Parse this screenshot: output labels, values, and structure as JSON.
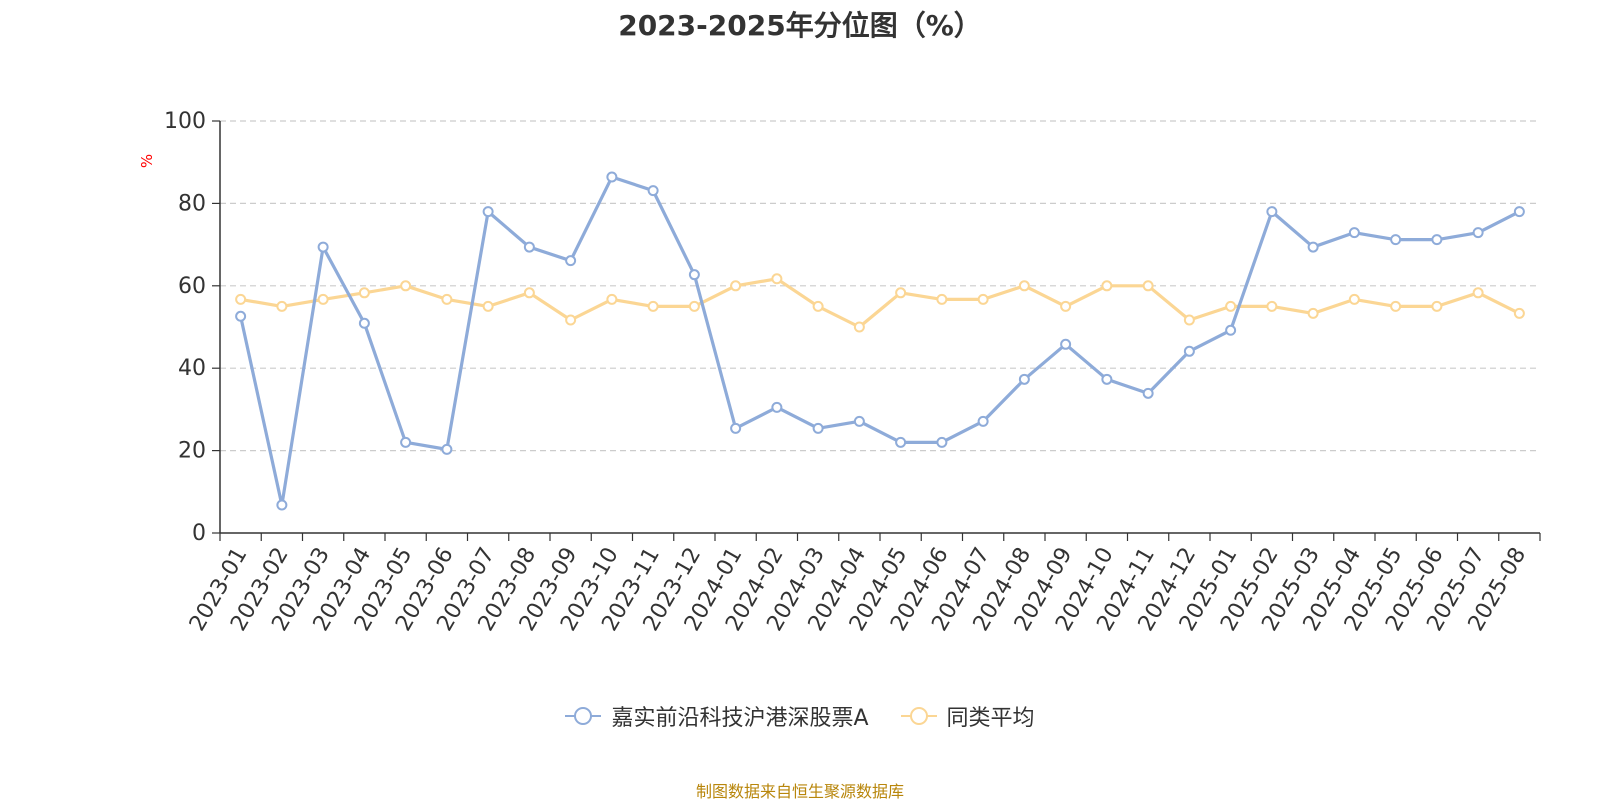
{
  "title": "2023-2025年分位图（%）",
  "unit_label": "%",
  "source_note": "制图数据来自恒生聚源数据库",
  "colors": {
    "series1": "#8eabd9",
    "series2": "#fbd694",
    "grid": "#cccccc",
    "axis": "#333333"
  },
  "chart_data": {
    "type": "line",
    "ylim": [
      0,
      100
    ],
    "yticks": [
      0,
      20,
      40,
      60,
      80,
      100
    ],
    "grid": true,
    "legend_position": "bottom",
    "categories": [
      "2023-01",
      "2023-02",
      "2023-03",
      "2023-04",
      "2023-05",
      "2023-06",
      "2023-07",
      "2023-08",
      "2023-09",
      "2023-10",
      "2023-11",
      "2023-12",
      "2024-01",
      "2024-02",
      "2024-03",
      "2024-04",
      "2024-05",
      "2024-06",
      "2024-07",
      "2024-08",
      "2024-09",
      "2024-10",
      "2024-11",
      "2024-12",
      "2025-01",
      "2025-02",
      "2025-03",
      "2025-04",
      "2025-05",
      "2025-06",
      "2025-07",
      "2025-08"
    ],
    "series": [
      {
        "name": "嘉实前沿科技沪港深股票A",
        "values": [
          52.6,
          6.8,
          69.4,
          50.9,
          22.0,
          20.3,
          78.0,
          69.4,
          66.1,
          86.4,
          83.1,
          62.7,
          25.4,
          30.5,
          25.4,
          27.1,
          22.0,
          22.0,
          27.1,
          37.3,
          45.8,
          37.3,
          33.9,
          44.1,
          49.2,
          78.0,
          69.4,
          72.9,
          71.2,
          71.2,
          72.9,
          78.0
        ]
      },
      {
        "name": "同类平均",
        "values": [
          56.7,
          55.0,
          56.7,
          58.3,
          60.0,
          56.7,
          55.0,
          58.3,
          51.7,
          56.7,
          55.0,
          55.0,
          60.0,
          61.7,
          55.0,
          50.0,
          58.3,
          56.7,
          56.7,
          60.0,
          55.0,
          60.0,
          60.0,
          51.7,
          55.0,
          55.0,
          53.3,
          56.7,
          55.0,
          55.0,
          58.3,
          53.3
        ]
      }
    ]
  }
}
